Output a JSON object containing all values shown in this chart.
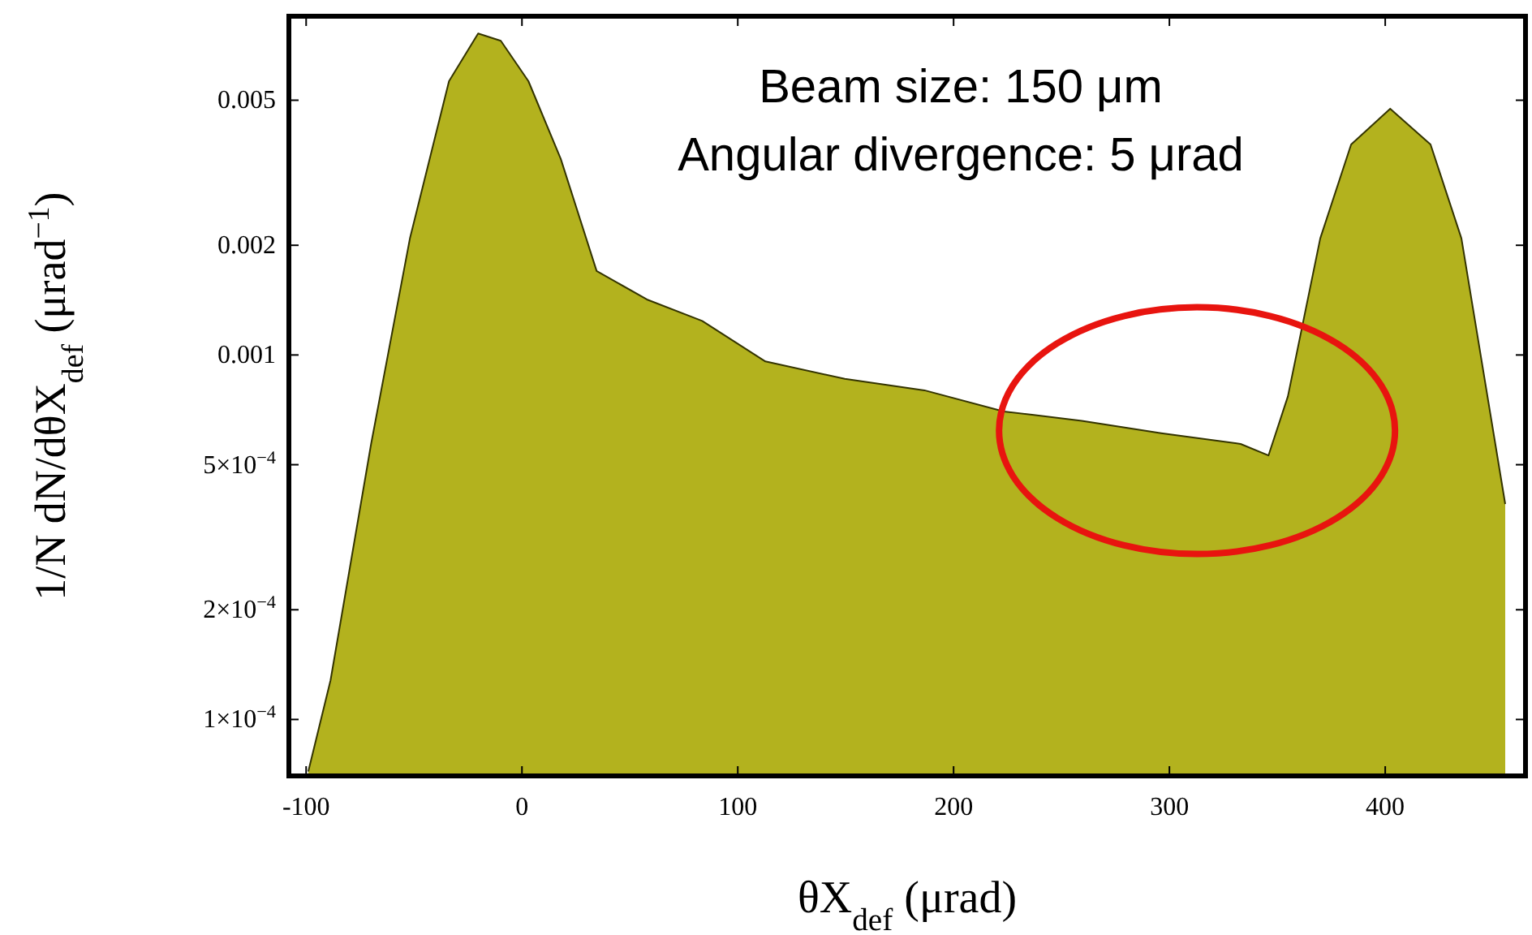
{
  "chart_data": {
    "type": "area",
    "xlabel": "θX$_{def}$ (μrad)",
    "ylabel": "1/N dN/dθX$_{def}$ (μrad$^{−1}$)",
    "annotations": [
      "Beam size: 150 μm",
      "Angular divergence: 5 μrad"
    ],
    "log": "y",
    "grid": false,
    "marker": "none",
    "xlim": [
      -108,
      465
    ],
    "xticks": [
      -100,
      0,
      100,
      200,
      300,
      400
    ],
    "ylim": [
      7e-05,
      0.0085
    ],
    "yticks": [
      0.005,
      0.002,
      0.001,
      {
        "value": 0.0005,
        "label": "5×10$^{−4}$"
      },
      {
        "value": 0.0002,
        "label": "2×10$^{−4}$"
      },
      {
        "value": 0.0001,
        "label": "1×10$^{−4}$"
      }
    ],
    "series": [
      {
        "color": "#b3b21e",
        "x": [
          -99,
          -88.7,
          -69.9,
          -51.9,
          -33.8,
          -20.3,
          -9.8,
          3,
          18,
          34.6,
          57.9,
          83.5,
          112.8,
          149.6,
          186.5,
          223.3,
          259.4,
          296.2,
          333,
          345.9,
          354.9,
          369.9,
          384.2,
          402.3,
          421,
          435.3,
          455.6
        ],
        "values": [
          7.2e-05,
          0.000128,
          0.00057,
          0.00209,
          0.00564,
          0.00762,
          0.00728,
          0.00564,
          0.00345,
          0.0017,
          0.00142,
          0.00124,
          0.00096,
          0.00086,
          0.0008,
          0.0007,
          0.00066,
          0.00061,
          0.00057,
          0.00053,
          0.00077,
          0.00209,
          0.00378,
          0.00474,
          0.00378,
          0.00209,
          0.00039
        ]
      }
    ]
  }
}
